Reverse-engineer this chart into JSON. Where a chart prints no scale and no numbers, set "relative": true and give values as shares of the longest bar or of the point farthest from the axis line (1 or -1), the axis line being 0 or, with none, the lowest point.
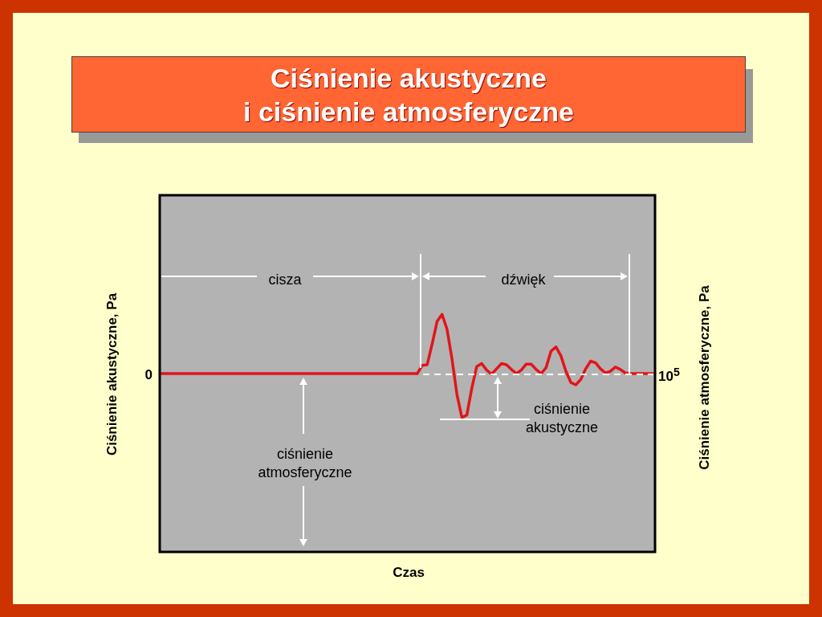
{
  "chart_data": {
    "type": "line",
    "title": "Ciśnienie akustyczne\ni ciśnienie atmosferyczne",
    "ylabel": "Ciśnienie akustyczne, Pa",
    "y2label": "Ciśnienie atmosferyczne, Pa",
    "relative": true,
    "legend": false,
    "marker": "none",
    "line_style": "solid",
    "categories": [
      null,
      null,
      null,
      null,
      null,
      null,
      null,
      null,
      null,
      null,
      null,
      null,
      null,
      null,
      null,
      null,
      null,
      null,
      null,
      null,
      null,
      null,
      null,
      null,
      null,
      null,
      null,
      null,
      null,
      null,
      null,
      null,
      null,
      null,
      null,
      null,
      null,
      null,
      null,
      null,
      null,
      null,
      null,
      null,
      null,
      null,
      null,
      null,
      null,
      null,
      null,
      null,
      null,
      null,
      null,
      null,
      null,
      null,
      null,
      null,
      null,
      null,
      null,
      null,
      null,
      null,
      null,
      null,
      null,
      null,
      null,
      null,
      null,
      null,
      null,
      null,
      null,
      null,
      null,
      null,
      null,
      null,
      null,
      null,
      null,
      null,
      null,
      null,
      null,
      null,
      null,
      null,
      null,
      null,
      null,
      null,
      null,
      null,
      null,
      null,
      null
    ],
    "series": [
      {
        "color": "#e3141b",
        "values": [
          0,
          0,
          0,
          0,
          0,
          0,
          0,
          0,
          0,
          0,
          0,
          0,
          0,
          0,
          0,
          0,
          0,
          0,
          0,
          0,
          0,
          0,
          0,
          0,
          0,
          0,
          0,
          0,
          0,
          0,
          0,
          0,
          0,
          0,
          0,
          0,
          0,
          0,
          0,
          0,
          0,
          0,
          0,
          0,
          0,
          0,
          0,
          0,
          0,
          0,
          0,
          0,
          0,
          0.14,
          0.15,
          0.5,
          0.88,
          1.0,
          0.75,
          0.25,
          -0.35,
          -0.74,
          -0.7,
          -0.25,
          0.12,
          0.17,
          0.06,
          -0.01,
          0.08,
          0.17,
          0.15,
          0.07,
          0,
          0.06,
          0.16,
          0.16,
          0.07,
          0,
          0.1,
          0.38,
          0.45,
          0.3,
          0.04,
          -0.15,
          -0.19,
          -0.1,
          0.08,
          0.21,
          0.18,
          0.08,
          0.01,
          0.04,
          0.11,
          0.07,
          0.01,
          0,
          0,
          0,
          0,
          0,
          0
        ]
      }
    ],
    "annotations": [
      "cisza",
      "dźwięk",
      "ciśnienie akustyczne",
      "ciśnienie atmosferyczne",
      "0",
      "10$^{5}$",
      "Czas"
    ]
  }
}
